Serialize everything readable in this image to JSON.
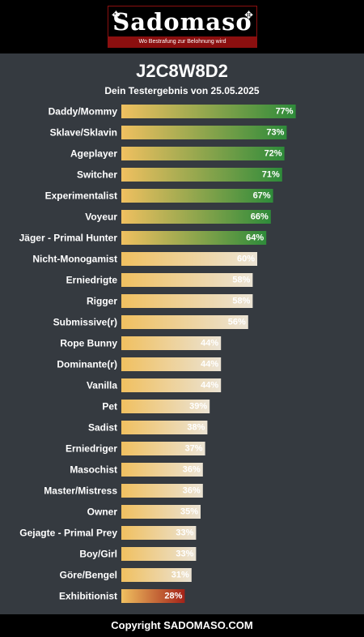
{
  "header": {
    "logo_text": "Sadomaso",
    "logo_tagline": "Wo Bestrafung zur Belohnung wird"
  },
  "result": {
    "title": "J2C8W8D2",
    "subtitle": "Dein Testergebnis von 25.05.2025"
  },
  "colors": {
    "background": "#353a40",
    "bar_start": "#f0c060",
    "bar_high": "#2e8b3a",
    "bar_mid": "#ebe3d4",
    "bar_low": "#a32218"
  },
  "chart_data": {
    "type": "bar",
    "orientation": "horizontal",
    "categories": [
      "Daddy/Mommy",
      "Sklave/Sklavin",
      "Ageplayer",
      "Switcher",
      "Experimentalist",
      "Voyeur",
      "Jäger - Primal Hunter",
      "Nicht-Monogamist",
      "Erniedrigte",
      "Rigger",
      "Submissive(r)",
      "Rope Bunny",
      "Dominante(r)",
      "Vanilla",
      "Pet",
      "Sadist",
      "Erniedriger",
      "Masochist",
      "Master/Mistress",
      "Owner",
      "Gejagte - Primal Prey",
      "Boy/Girl",
      "Göre/Bengel",
      "Exhibitionist"
    ],
    "values": [
      77,
      73,
      72,
      71,
      67,
      66,
      64,
      60,
      58,
      58,
      56,
      44,
      44,
      44,
      39,
      38,
      37,
      36,
      36,
      35,
      33,
      33,
      31,
      28
    ],
    "value_labels": [
      "77%",
      "73%",
      "72%",
      "71%",
      "67%",
      "66%",
      "64%",
      "60%",
      "58%",
      "58%",
      "56%",
      "44%",
      "44%",
      "44%",
      "39%",
      "38%",
      "37%",
      "36%",
      "36%",
      "35%",
      "33%",
      "33%",
      "31%",
      "28%"
    ],
    "xlim": [
      0,
      100
    ],
    "grid": false,
    "legend": "none"
  },
  "footer": {
    "text": "Copyright SADOMASO.COM"
  }
}
